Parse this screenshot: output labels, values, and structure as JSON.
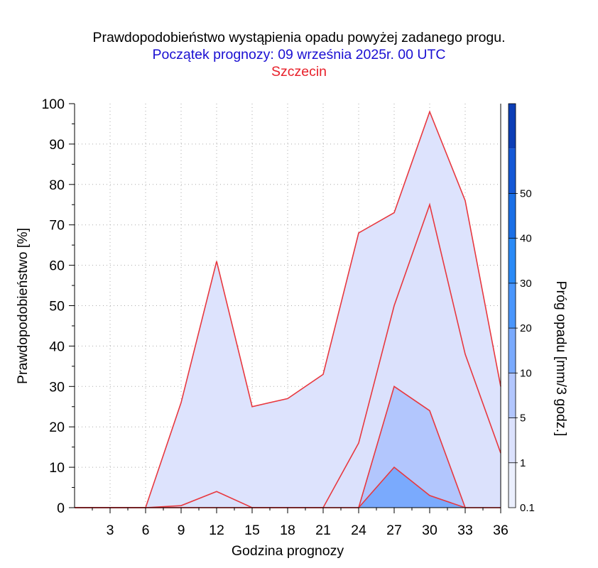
{
  "chart_data": {
    "type": "area",
    "title": "Prawdopodobieństwo wystąpienia opadu powyżej zadanego progu.",
    "subtitle": "Początek prognozy: 09 września 2025r. 00 UTC",
    "location": "Szczecin",
    "xlabel": "Godzina prognozy",
    "ylabel": "Prawdopodobieństwo [%]",
    "xlim": [
      0,
      36
    ],
    "ylim": [
      0,
      100
    ],
    "x_ticks": [
      3,
      6,
      9,
      12,
      15,
      18,
      21,
      24,
      27,
      30,
      33,
      36
    ],
    "y_ticks": [
      0,
      10,
      20,
      30,
      40,
      50,
      60,
      70,
      80,
      90,
      100
    ],
    "grid": true,
    "x": [
      0,
      3,
      6,
      9,
      12,
      15,
      18,
      21,
      24,
      27,
      30,
      33,
      36
    ],
    "series": [
      {
        "threshold": "0.1",
        "color": "#dde3fd",
        "values": [
          0,
          0,
          0,
          26,
          61,
          25,
          27,
          33,
          68,
          73,
          98,
          76,
          30
        ]
      },
      {
        "threshold": "1",
        "color": "#dbe1fc",
        "values": [
          0,
          0,
          0,
          0.5,
          4,
          0,
          0,
          0,
          16,
          50,
          75,
          38,
          13.5
        ]
      },
      {
        "threshold": "5",
        "color": "#b2c6fd",
        "values": [
          0,
          0,
          0,
          0,
          0,
          0,
          0,
          0,
          0,
          30,
          24,
          0,
          0
        ]
      },
      {
        "threshold": "10",
        "color": "#7aaafd",
        "values": [
          0,
          0,
          0,
          0,
          0,
          0,
          0,
          0,
          0,
          10,
          3,
          0,
          0
        ]
      }
    ],
    "colorbar": {
      "label": "Próg opadu [mm/3 godz.]",
      "tick_labels": [
        "0.1",
        "1",
        "5",
        "10",
        "20",
        "30",
        "40",
        "50"
      ],
      "colors": [
        "#ebeffd",
        "#dbe1fc",
        "#b2c6fd",
        "#7aaafd",
        "#4a96fc",
        "#2a8af6",
        "#1a6fe6",
        "#1458d6",
        "#0c3eb6"
      ]
    }
  }
}
